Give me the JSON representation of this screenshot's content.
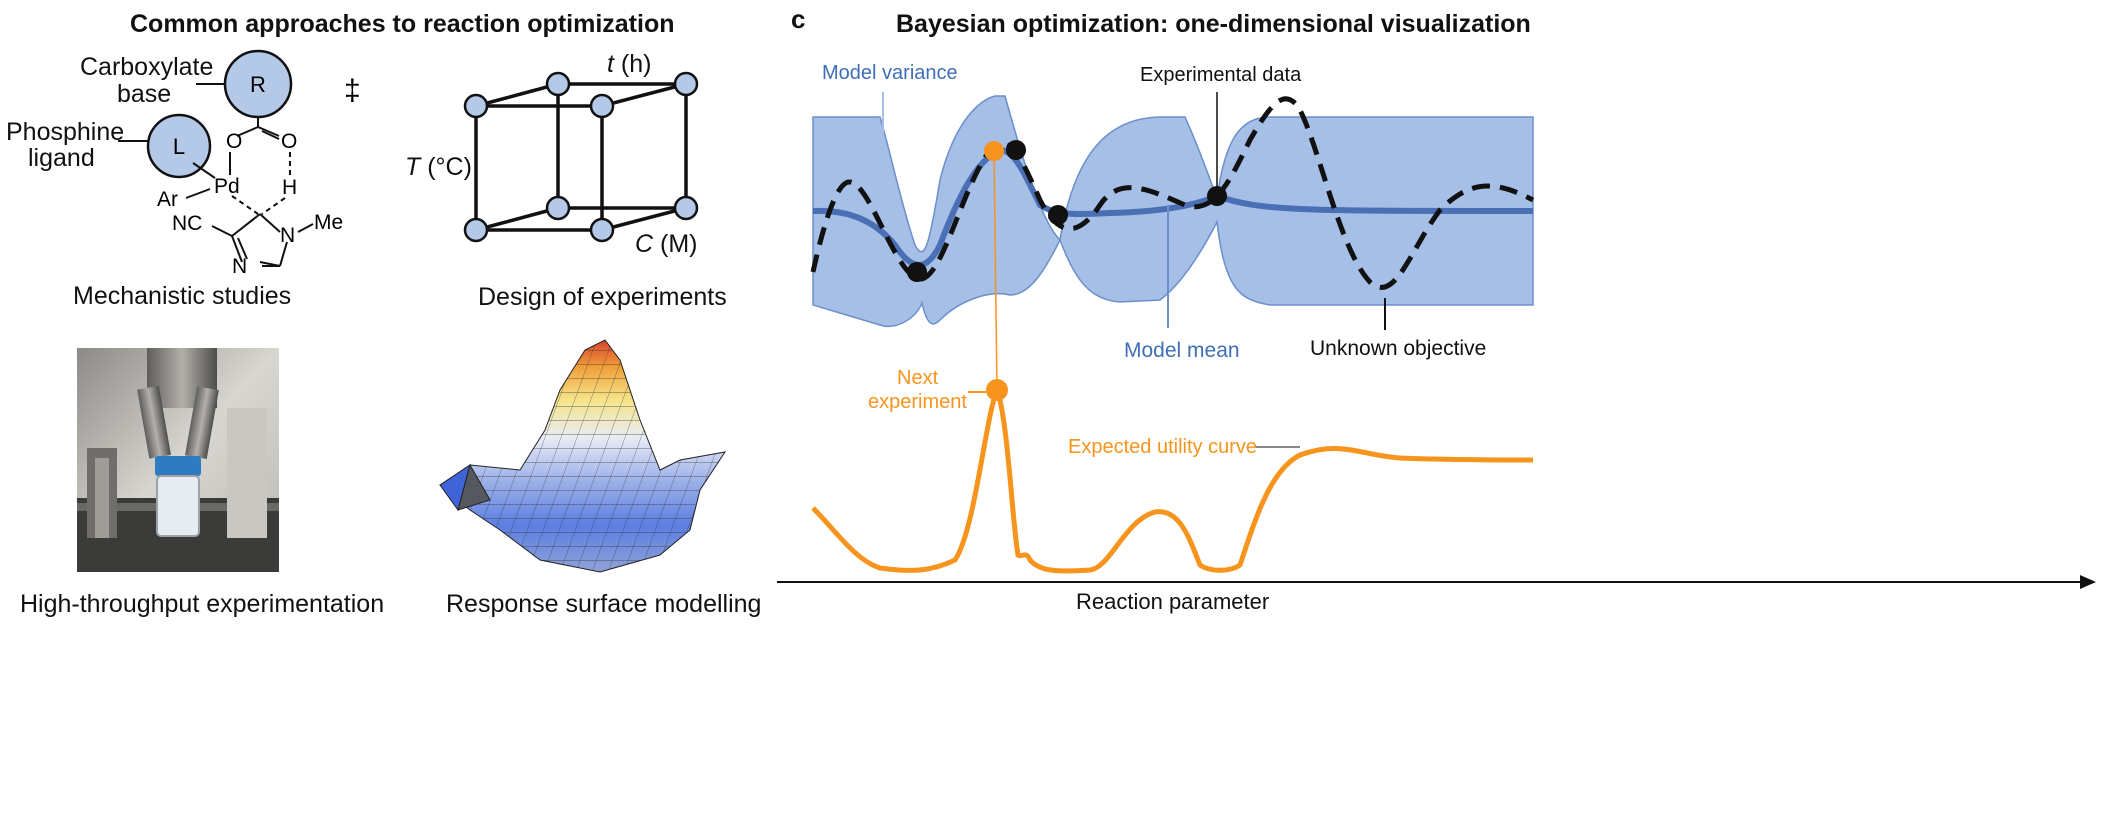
{
  "left": {
    "title": "Common approaches to reaction optimization",
    "mechanistic": {
      "caption": "Mechanistic studies",
      "carboxylate_label": [
        "Carboxylate",
        "base"
      ],
      "phosphine_label": [
        "Phosphine",
        "ligand"
      ],
      "R": "R",
      "L": "L",
      "Pd": "Pd",
      "Ar": "Ar",
      "H": "H",
      "NC": "NC",
      "N_ring_top": "N",
      "N_ring_bottom": "N",
      "Me": "Me",
      "O1": "O",
      "O2": "O",
      "ts_symbol": "‡"
    },
    "doe": {
      "caption": "Design of experiments",
      "axis_t": "t",
      "axis_t_unit": " (h)",
      "axis_T": "T",
      "axis_T_unit": " (°C)",
      "axis_C": "C",
      "axis_C_unit": " (M)"
    },
    "hte": {
      "caption": "High-throughput experimentation"
    },
    "rsm": {
      "caption": "Response surface modelling"
    }
  },
  "right": {
    "panel_letter": "c",
    "title": "Bayesian optimization: one-dimensional visualization",
    "labels": {
      "model_variance": "Model variance",
      "experimental_data": "Experimental data",
      "model_mean": "Model mean",
      "unknown_objective": "Unknown objective",
      "next_experiment": [
        "Next",
        "experiment"
      ],
      "expected_utility": "Expected utility curve",
      "x_axis": "Reaction parameter"
    },
    "colors": {
      "variance_fill": "#a6bfe6",
      "variance_stroke": "#6b8fcb",
      "model_mean": "#4a6fb5",
      "label_blue": "#3f6fb6",
      "objective": "#111111",
      "utility": "#f7941d"
    }
  }
}
